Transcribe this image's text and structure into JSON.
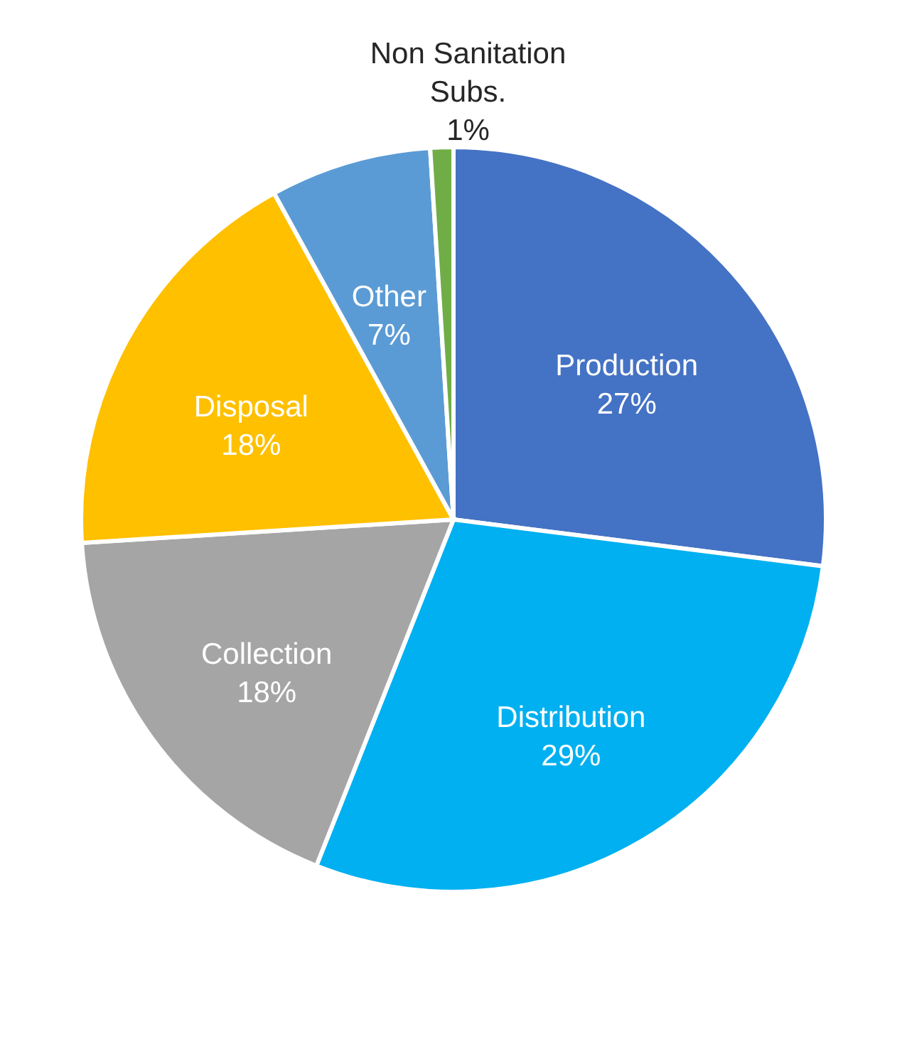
{
  "chart_data": {
    "type": "pie",
    "categories": [
      "Production",
      "Distribution",
      "Collection",
      "Disposal",
      "Other",
      "Non Sanitation Subs."
    ],
    "values": [
      27,
      29,
      18,
      18,
      7,
      1
    ],
    "colors": [
      "#4472c4",
      "#00b0f0",
      "#a5a5a5",
      "#ffc000",
      "#5b9bd5",
      "#70ad47"
    ],
    "value_labels": [
      "27%",
      "29%",
      "18%",
      "18%",
      "7%",
      "1%"
    ]
  }
}
